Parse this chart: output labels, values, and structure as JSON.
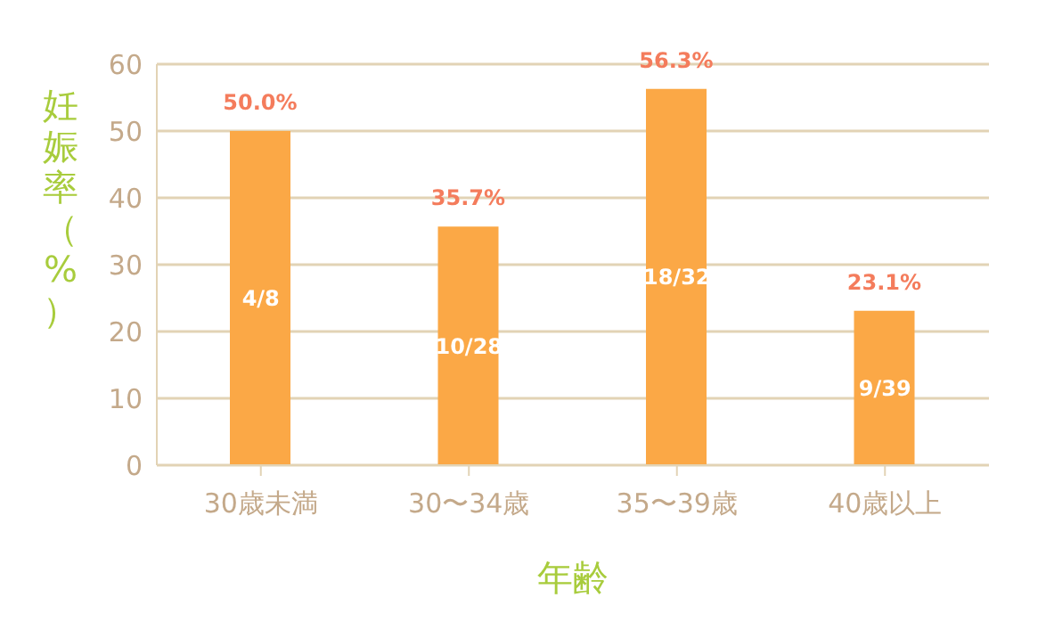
{
  "chart_data": {
    "type": "bar",
    "ylabel": "妊娠率（%）",
    "xlabel": "年齢",
    "categories": [
      "30歳未満",
      "30〜34歳",
      "35〜39歳",
      "40歳以上"
    ],
    "series": [
      {
        "color": "#fba846",
        "values": [
          50.0,
          35.7,
          56.3,
          23.1
        ],
        "value_labels": [
          "50.0%",
          "35.7%",
          "56.3%",
          "23.1%"
        ]
      }
    ],
    "ylim": [
      0,
      60
    ],
    "yticks": [
      0,
      10,
      20,
      30,
      40,
      50,
      60
    ],
    "grid": "y",
    "legend": false,
    "annotations": [
      "4/8",
      "10/28",
      "18/32",
      "9/39"
    ]
  }
}
